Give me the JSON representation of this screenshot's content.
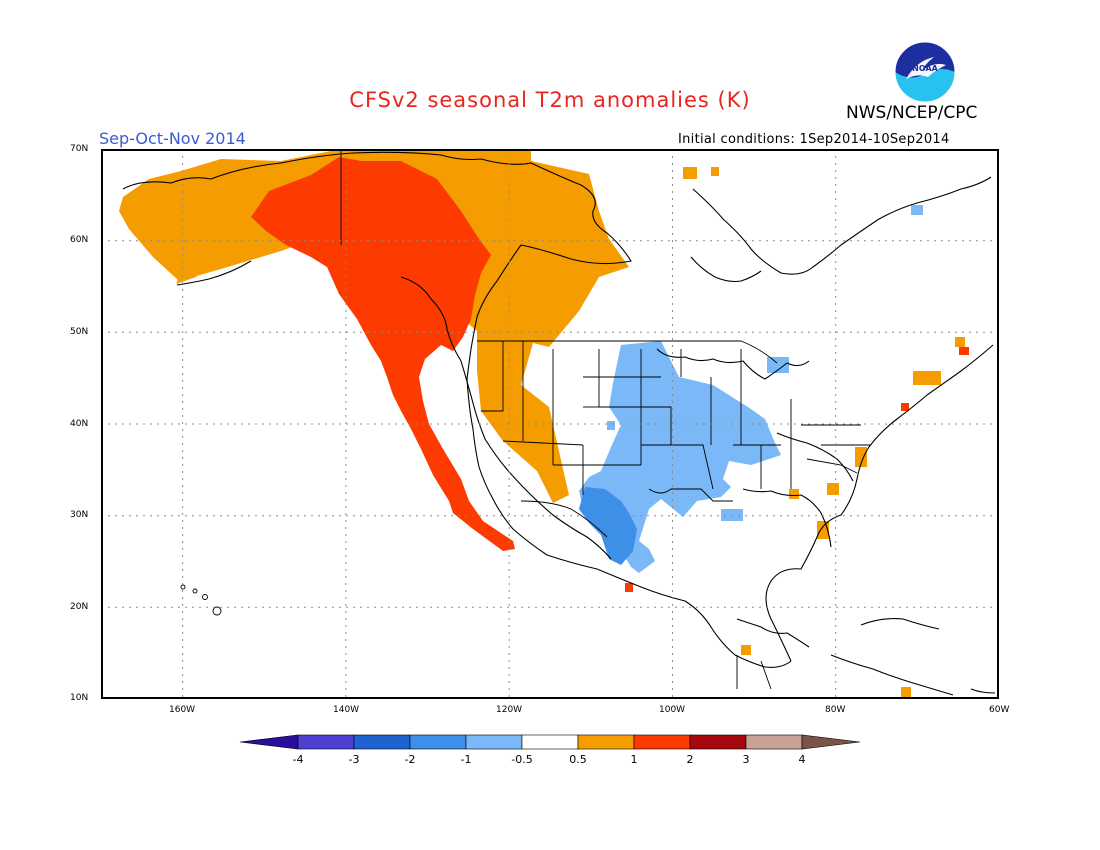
{
  "header": {
    "title": "CFSv2 seasonal T2m anomalies (K)",
    "agency": "NWS/NCEP/CPC",
    "season": "Sep-Oct-Nov 2014",
    "initial_conditions": "Initial conditions: 1Sep2014-10Sep2014",
    "logo_text": "NOAA"
  },
  "map": {
    "projection": "lat-lon",
    "lon_range": [
      -170,
      -60
    ],
    "lat_range": [
      10,
      70
    ],
    "gridlines": "dotted",
    "lat_labels": [
      "70N",
      "60N",
      "50N",
      "40N",
      "30N",
      "20N",
      "10N"
    ],
    "lon_labels": [
      "160W",
      "140W",
      "120W",
      "100W",
      "80W",
      "60W"
    ],
    "regions": [
      {
        "name": "Alaska and NW Canada",
        "anomaly_class": "0.5 to 1",
        "color": "#f6a000"
      },
      {
        "name": "Pacific coast, British Columbia and Yukon",
        "anomaly_class": "1 to 2",
        "color": "#ff3d00"
      },
      {
        "name": "Central and southern Plains",
        "anomaly_class": "-1 to -0.5",
        "color": "#78b9fa"
      },
      {
        "name": "Southwest and northern Mexico",
        "anomaly_class": "-2 to -1",
        "color": "#4394ed"
      }
    ]
  },
  "colorbar": {
    "levels": [
      "-4",
      "-3",
      "-2",
      "-1",
      "-0.5",
      "0.5",
      "1",
      "2",
      "3",
      "4"
    ],
    "colors": [
      "#2a0f9e",
      "#4c3fd2",
      "#1f63d2",
      "#3d8fe8",
      "#7ab8f8",
      "#ffffff",
      "#f59d00",
      "#fd3b00",
      "#a5090e",
      "#c8a294",
      "#7a5447"
    ]
  }
}
